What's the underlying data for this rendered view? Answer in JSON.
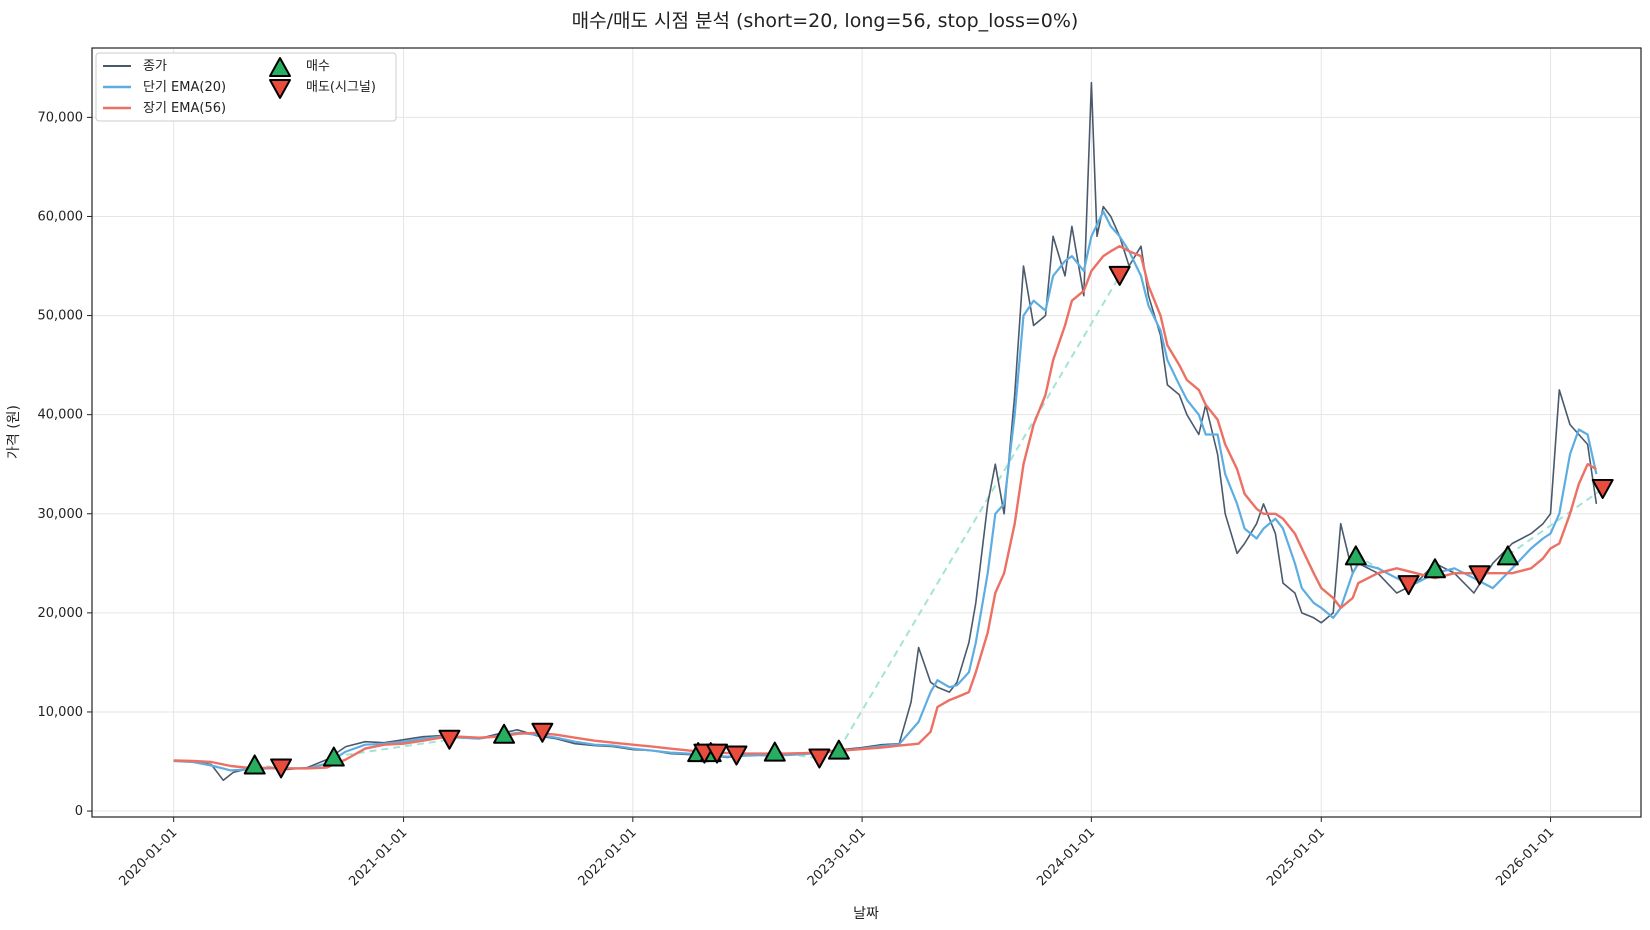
{
  "chart_data": {
    "type": "line",
    "title": "매수/매도 시점 분석 (short=20, long=56, stop_loss=0%)",
    "xlabel": "날짜",
    "ylabel": "가격 (원)",
    "ylim": [
      -600,
      77000
    ],
    "xlim": [
      "2019-08-24",
      "2026-05-25"
    ],
    "y_ticks": [
      0,
      10000,
      20000,
      30000,
      40000,
      50000,
      60000,
      70000
    ],
    "y_tick_labels": [
      "0",
      "10,000",
      "20,000",
      "30,000",
      "40,000",
      "50,000",
      "60,000",
      "70,000"
    ],
    "x_ticks": [
      "2020-01-01",
      "2021-01-01",
      "2022-01-01",
      "2023-01-01",
      "2024-01-01",
      "2025-01-01",
      "2026-01-01"
    ],
    "grid": true,
    "legend_position": "top-left",
    "legend": [
      "종가",
      "단기 EMA(20)",
      "장기 EMA(56)",
      "매수",
      "매도(시그널)"
    ],
    "colors": {
      "close": "#4a5a6c",
      "ema_short": "#5dade2",
      "ema_long": "#ec7063",
      "buy": "#27ae60",
      "sell": "#e74c3c",
      "trade_link": "#a3e4d7"
    },
    "series": [
      {
        "name": "종가",
        "x": [
          "2020-01-01",
          "2020-02-01",
          "2020-03-01",
          "2020-03-20",
          "2020-04-05",
          "2020-05-01",
          "2020-06-01",
          "2020-07-01",
          "2020-08-01",
          "2020-09-01",
          "2020-10-01",
          "2020-11-01",
          "2020-12-01",
          "2021-01-01",
          "2021-02-01",
          "2021-03-01",
          "2021-04-01",
          "2021-05-01",
          "2021-06-01",
          "2021-07-01",
          "2021-08-01",
          "2021-09-01",
          "2021-10-01",
          "2021-11-01",
          "2021-12-01",
          "2022-01-01",
          "2022-02-01",
          "2022-03-01",
          "2022-04-01",
          "2022-05-01",
          "2022-06-01",
          "2022-07-01",
          "2022-08-01",
          "2022-09-01",
          "2022-10-01",
          "2022-11-01",
          "2022-12-01",
          "2023-01-01",
          "2023-02-01",
          "2023-03-01",
          "2023-03-20",
          "2023-04-01",
          "2023-04-20",
          "2023-05-01",
          "2023-05-20",
          "2023-06-01",
          "2023-06-20",
          "2023-07-01",
          "2023-07-20",
          "2023-08-01",
          "2023-08-15",
          "2023-09-01",
          "2023-09-15",
          "2023-10-01",
          "2023-10-20",
          "2023-11-01",
          "2023-11-20",
          "2023-12-01",
          "2023-12-20",
          "2024-01-01",
          "2024-01-10",
          "2024-01-20",
          "2024-02-01",
          "2024-02-15",
          "2024-03-01",
          "2024-03-20",
          "2024-04-01",
          "2024-04-20",
          "2024-05-01",
          "2024-05-20",
          "2024-06-01",
          "2024-06-20",
          "2024-07-01",
          "2024-07-20",
          "2024-08-01",
          "2024-08-20",
          "2024-09-01",
          "2024-09-20",
          "2024-10-01",
          "2024-10-20",
          "2024-11-01",
          "2024-11-20",
          "2024-12-01",
          "2024-12-20",
          "2025-01-01",
          "2025-01-20",
          "2025-02-01",
          "2025-02-20",
          "2025-03-01",
          "2025-04-01",
          "2025-05-01",
          "2025-06-01",
          "2025-07-01",
          "2025-08-01",
          "2025-09-01",
          "2025-10-01",
          "2025-11-01",
          "2025-12-01",
          "2025-12-20",
          "2026-01-01",
          "2026-01-15",
          "2026-02-01",
          "2026-02-15",
          "2026-03-01",
          "2026-03-15"
        ],
        "values": [
          5100,
          5000,
          4700,
          3100,
          3900,
          4300,
          4400,
          4200,
          4400,
          5200,
          6500,
          7000,
          6900,
          7200,
          7500,
          7600,
          7400,
          7300,
          7800,
          8200,
          7600,
          7300,
          6800,
          6600,
          6500,
          6200,
          6100,
          5800,
          5700,
          5600,
          5400,
          5700,
          5600,
          5700,
          5800,
          6000,
          6200,
          6400,
          6700,
          6800,
          11000,
          16500,
          13000,
          12500,
          12000,
          13000,
          17000,
          21000,
          31000,
          35000,
          30000,
          42000,
          55000,
          49000,
          50000,
          58000,
          54000,
          59000,
          52000,
          73500,
          58000,
          61000,
          60000,
          58000,
          55000,
          57000,
          52000,
          48000,
          43000,
          42000,
          40000,
          38000,
          41000,
          36000,
          30000,
          26000,
          27000,
          29000,
          31000,
          28000,
          23000,
          22000,
          20000,
          19500,
          19000,
          20000,
          29000,
          24000,
          25000,
          24000,
          22000,
          23000,
          25000,
          24000,
          22000,
          25000,
          27000,
          28000,
          29000,
          30000,
          42500,
          39000,
          38000,
          37000,
          31000
        ]
      },
      {
        "name": "단기 EMA(20)",
        "x": [
          "2020-01-01",
          "2020-02-01",
          "2020-03-01",
          "2020-04-01",
          "2020-05-01",
          "2020-06-01",
          "2020-07-01",
          "2020-08-01",
          "2020-09-01",
          "2020-10-01",
          "2020-11-01",
          "2020-12-01",
          "2021-01-01",
          "2021-02-01",
          "2021-03-01",
          "2021-04-01",
          "2021-05-01",
          "2021-06-01",
          "2021-07-01",
          "2021-08-01",
          "2021-09-01",
          "2021-10-01",
          "2021-11-01",
          "2021-12-01",
          "2022-01-01",
          "2022-02-01",
          "2022-03-01",
          "2022-04-01",
          "2022-05-01",
          "2022-06-01",
          "2022-07-01",
          "2022-08-01",
          "2022-09-01",
          "2022-10-01",
          "2022-11-01",
          "2022-12-01",
          "2023-01-01",
          "2023-02-01",
          "2023-03-01",
          "2023-04-01",
          "2023-04-20",
          "2023-05-01",
          "2023-05-20",
          "2023-06-01",
          "2023-06-20",
          "2023-07-01",
          "2023-07-20",
          "2023-08-01",
          "2023-08-15",
          "2023-09-01",
          "2023-09-15",
          "2023-10-01",
          "2023-10-20",
          "2023-11-01",
          "2023-11-20",
          "2023-12-01",
          "2023-12-20",
          "2024-01-01",
          "2024-01-20",
          "2024-02-01",
          "2024-02-15",
          "2024-03-01",
          "2024-03-20",
          "2024-04-01",
          "2024-04-20",
          "2024-05-01",
          "2024-05-20",
          "2024-06-01",
          "2024-06-20",
          "2024-07-01",
          "2024-07-20",
          "2024-08-01",
          "2024-08-20",
          "2024-09-01",
          "2024-09-20",
          "2024-10-01",
          "2024-10-20",
          "2024-11-01",
          "2024-11-20",
          "2024-12-01",
          "2024-12-20",
          "2025-01-01",
          "2025-01-20",
          "2025-02-01",
          "2025-02-20",
          "2025-03-01",
          "2025-04-01",
          "2025-05-01",
          "2025-06-01",
          "2025-07-01",
          "2025-08-01",
          "2025-09-01",
          "2025-10-01",
          "2025-11-01",
          "2025-12-01",
          "2025-12-20",
          "2026-01-01",
          "2026-01-15",
          "2026-02-01",
          "2026-02-15",
          "2026-03-01",
          "2026-03-15"
        ],
        "values": [
          5050,
          4950,
          4600,
          4100,
          4200,
          4300,
          4300,
          4300,
          4800,
          6000,
          6700,
          6800,
          7000,
          7300,
          7500,
          7400,
          7300,
          7600,
          7900,
          7700,
          7400,
          7000,
          6700,
          6600,
          6300,
          6100,
          5900,
          5800,
          5650,
          5500,
          5600,
          5650,
          5650,
          5750,
          5950,
          6100,
          6300,
          6550,
          6750,
          9000,
          12000,
          13200,
          12500,
          12700,
          14000,
          17000,
          24000,
          30000,
          31000,
          40000,
          50000,
          51500,
          50500,
          54000,
          55500,
          56000,
          54500,
          58000,
          60500,
          59000,
          58000,
          56500,
          54000,
          51000,
          48500,
          45500,
          43000,
          41500,
          40000,
          38000,
          38000,
          34000,
          31000,
          28500,
          27500,
          28500,
          29500,
          28500,
          25000,
          22500,
          21000,
          20500,
          19500,
          20500,
          24000,
          25000,
          24500,
          23500,
          23000,
          24000,
          24500,
          23500,
          22500,
          24500,
          26500,
          27500,
          28000,
          30000,
          36000,
          38500,
          38000,
          34000
        ]
      },
      {
        "name": "장기 EMA(56)",
        "x": [
          "2020-01-01",
          "2020-02-01",
          "2020-03-01",
          "2020-04-01",
          "2020-05-01",
          "2020-06-01",
          "2020-07-01",
          "2020-08-01",
          "2020-09-01",
          "2020-10-01",
          "2020-11-01",
          "2020-12-01",
          "2021-01-01",
          "2021-02-01",
          "2021-03-01",
          "2021-04-01",
          "2021-05-01",
          "2021-06-01",
          "2021-07-01",
          "2021-08-01",
          "2021-09-01",
          "2021-10-01",
          "2021-11-01",
          "2021-12-01",
          "2022-01-01",
          "2022-02-01",
          "2022-03-01",
          "2022-04-01",
          "2022-05-01",
          "2022-06-01",
          "2022-07-01",
          "2022-08-01",
          "2022-09-01",
          "2022-10-01",
          "2022-11-01",
          "2022-12-01",
          "2023-01-01",
          "2023-02-01",
          "2023-03-01",
          "2023-04-01",
          "2023-04-20",
          "2023-05-01",
          "2023-05-20",
          "2023-06-01",
          "2023-06-20",
          "2023-07-01",
          "2023-07-20",
          "2023-08-01",
          "2023-08-15",
          "2023-09-01",
          "2023-09-15",
          "2023-10-01",
          "2023-10-20",
          "2023-11-01",
          "2023-11-20",
          "2023-12-01",
          "2023-12-20",
          "2024-01-01",
          "2024-01-20",
          "2024-02-01",
          "2024-02-15",
          "2024-03-01",
          "2024-03-20",
          "2024-04-01",
          "2024-04-20",
          "2024-05-01",
          "2024-05-20",
          "2024-06-01",
          "2024-06-20",
          "2024-07-01",
          "2024-07-20",
          "2024-08-01",
          "2024-08-20",
          "2024-09-01",
          "2024-09-20",
          "2024-10-01",
          "2024-10-20",
          "2024-11-01",
          "2024-11-20",
          "2024-12-01",
          "2024-12-20",
          "2025-01-01",
          "2025-01-20",
          "2025-02-01",
          "2025-02-20",
          "2025-03-01",
          "2025-04-01",
          "2025-05-01",
          "2025-06-01",
          "2025-07-01",
          "2025-08-01",
          "2025-09-01",
          "2025-10-01",
          "2025-11-01",
          "2025-12-01",
          "2025-12-20",
          "2026-01-01",
          "2026-01-15",
          "2026-02-01",
          "2026-02-15",
          "2026-03-01",
          "2026-03-15"
        ],
        "values": [
          5100,
          5050,
          4950,
          4550,
          4350,
          4350,
          4300,
          4300,
          4400,
          5200,
          6300,
          6700,
          6800,
          7100,
          7400,
          7500,
          7400,
          7500,
          7800,
          7900,
          7700,
          7400,
          7100,
          6900,
          6700,
          6500,
          6300,
          6100,
          5950,
          5850,
          5800,
          5800,
          5800,
          5850,
          5950,
          6100,
          6250,
          6400,
          6600,
          6800,
          8000,
          10500,
          11200,
          11500,
          12000,
          14000,
          18000,
          22000,
          24000,
          29000,
          35000,
          39000,
          42000,
          45500,
          49000,
          51500,
          52500,
          54500,
          56000,
          56500,
          57000,
          56500,
          56000,
          53000,
          50000,
          47000,
          45000,
          43500,
          42500,
          41000,
          39500,
          37000,
          34500,
          32000,
          30500,
          30000,
          30000,
          29500,
          28000,
          26500,
          24000,
          22500,
          21500,
          20500,
          21500,
          23000,
          24000,
          24500,
          24000,
          23500,
          24000,
          24000,
          24000,
          24000,
          24500,
          25500,
          26500,
          27000,
          30000,
          33000,
          35000,
          34500
        ]
      }
    ],
    "buy_signals": [
      {
        "date": "2020-05-09",
        "price": 4700
      },
      {
        "date": "2020-09-12",
        "price": 5500
      },
      {
        "date": "2021-06-10",
        "price": 7800
      },
      {
        "date": "2022-04-15",
        "price": 5950
      },
      {
        "date": "2022-05-05",
        "price": 5950
      },
      {
        "date": "2022-08-15",
        "price": 6000
      },
      {
        "date": "2022-11-25",
        "price": 6200
      },
      {
        "date": "2025-02-25",
        "price": 25800
      },
      {
        "date": "2025-07-01",
        "price": 24500
      },
      {
        "date": "2025-10-25",
        "price": 25800
      }
    ],
    "sell_signals": [
      {
        "date": "2020-06-20",
        "price": 4300
      },
      {
        "date": "2021-03-15",
        "price": 7200
      },
      {
        "date": "2021-08-10",
        "price": 7900
      },
      {
        "date": "2022-04-25",
        "price": 5800
      },
      {
        "date": "2022-05-15",
        "price": 5800
      },
      {
        "date": "2022-06-15",
        "price": 5600
      },
      {
        "date": "2022-10-25",
        "price": 5300
      },
      {
        "date": "2024-02-15",
        "price": 54000
      },
      {
        "date": "2025-05-20",
        "price": 22800
      },
      {
        "date": "2025-09-10",
        "price": 23800
      },
      {
        "date": "2026-03-25",
        "price": 32500
      }
    ]
  }
}
